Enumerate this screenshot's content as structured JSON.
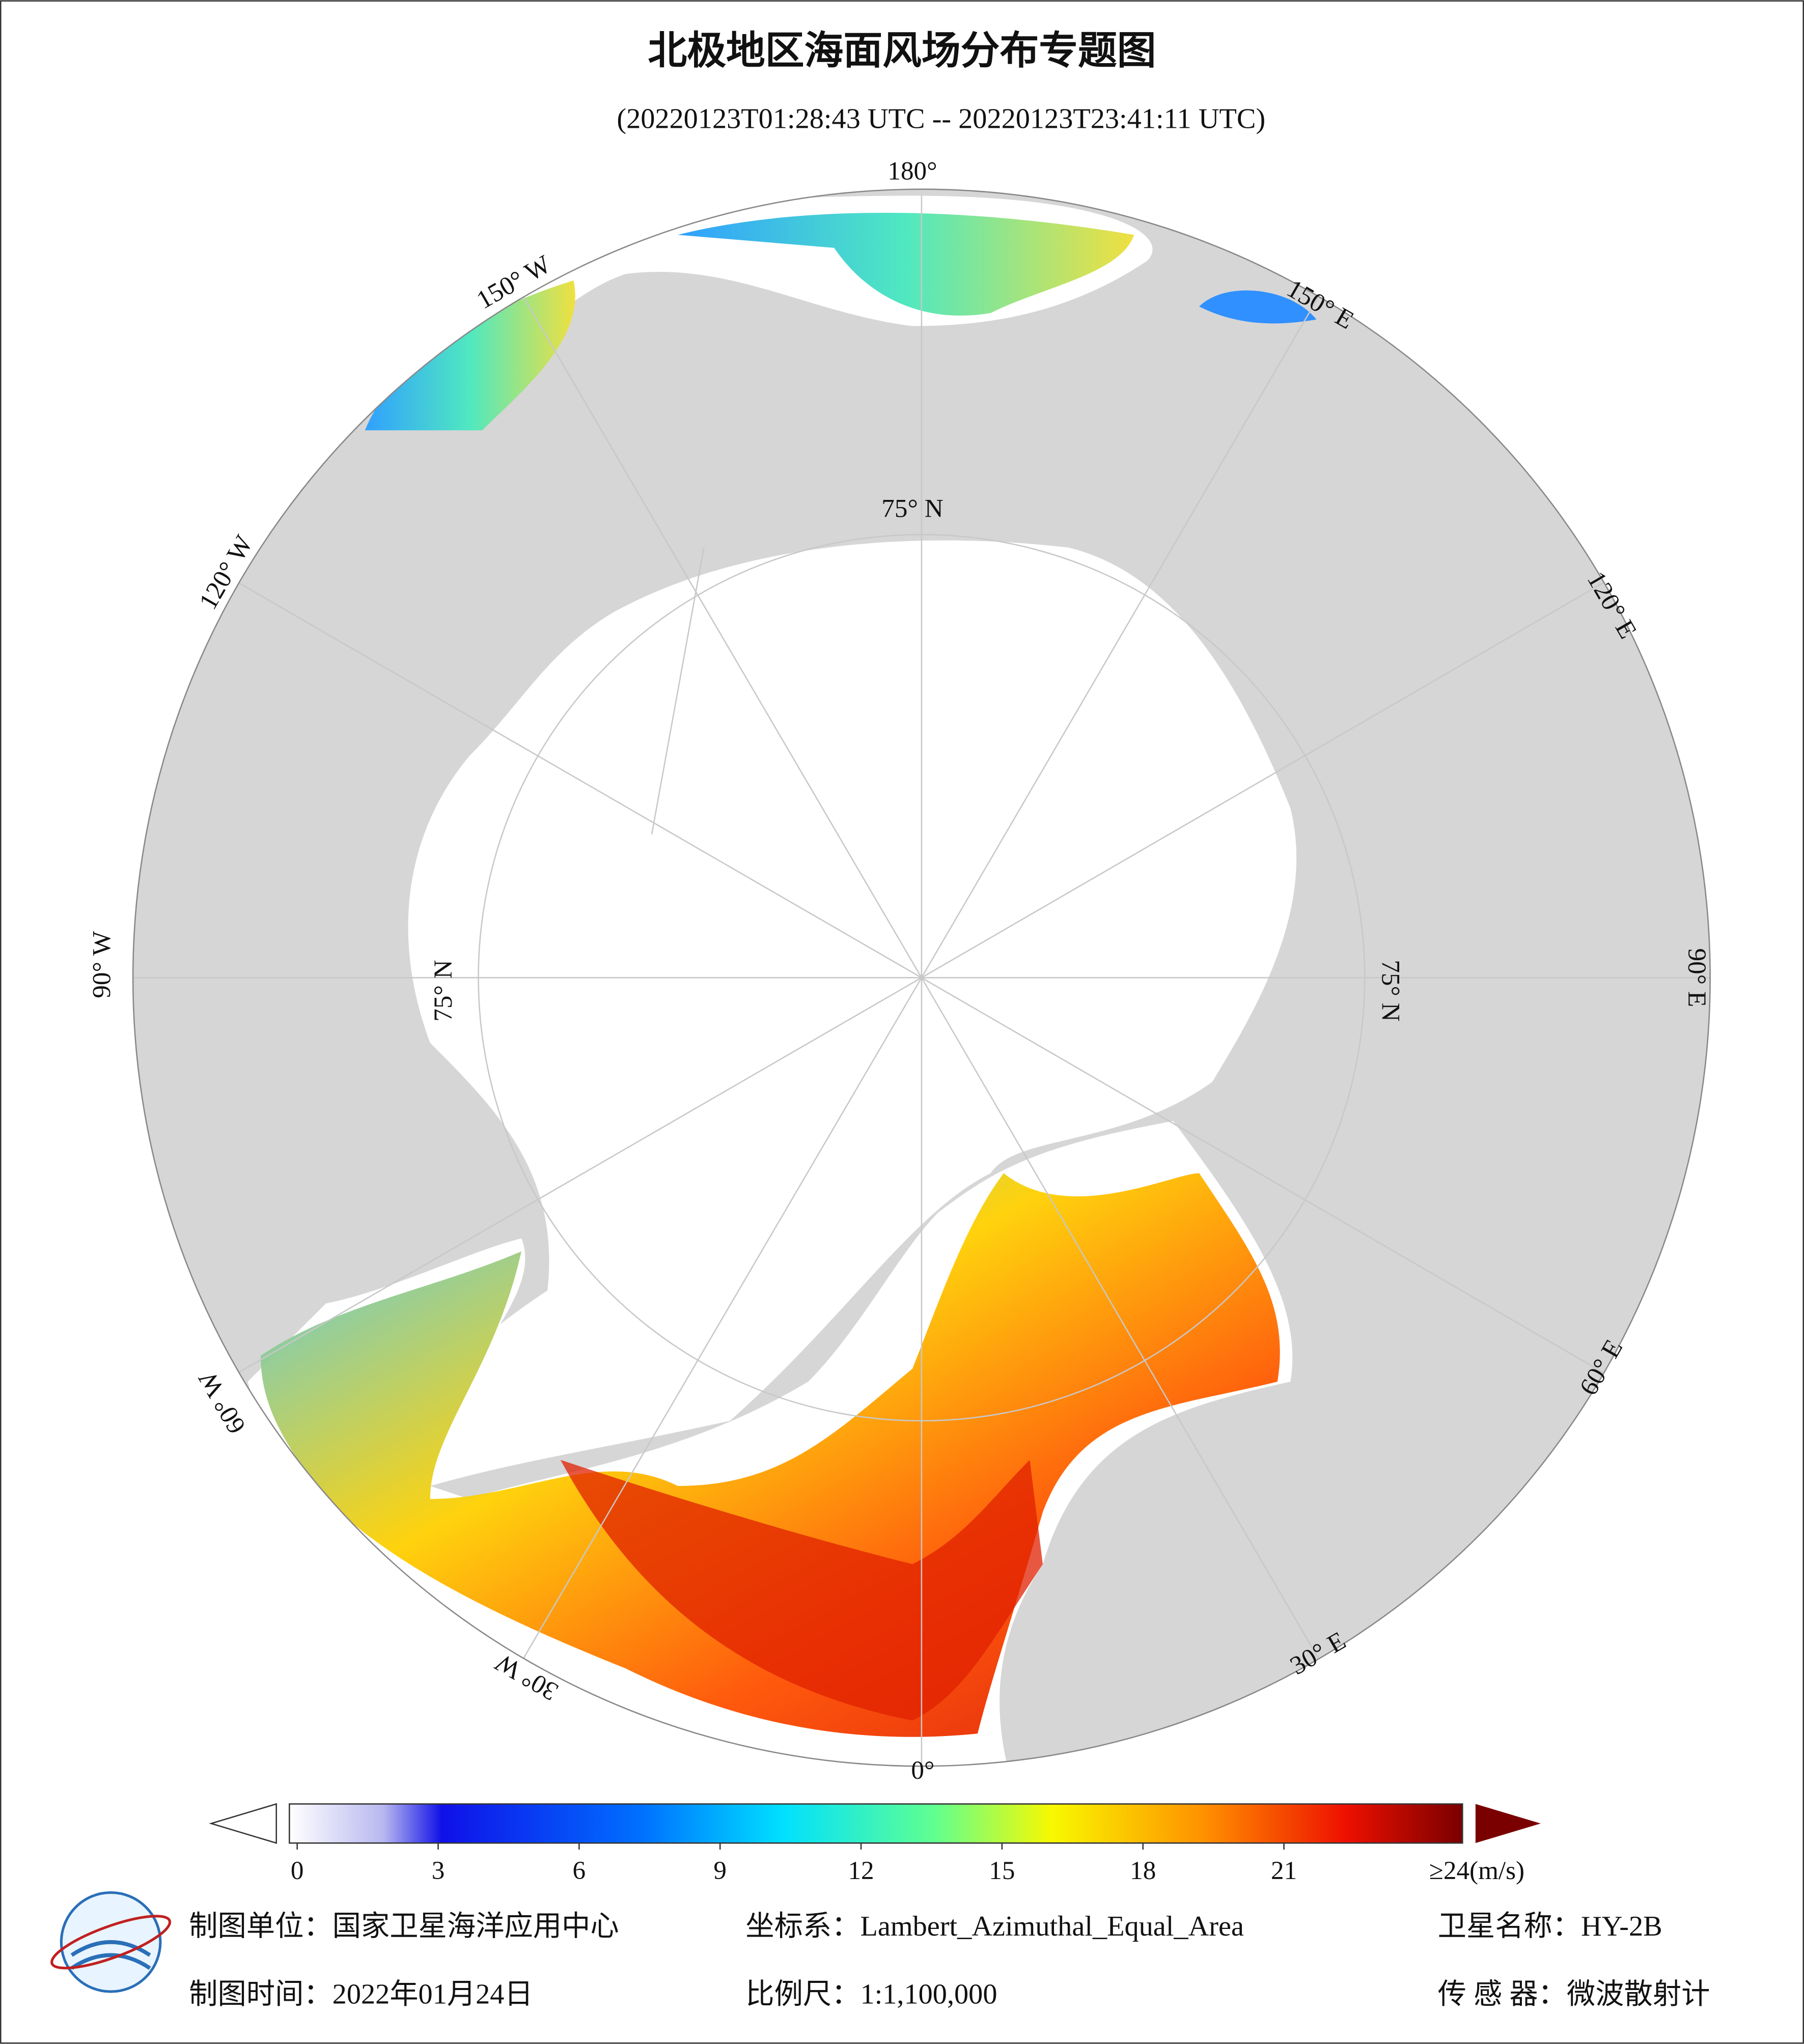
{
  "header": {
    "title": "北极地区海面风场分布专题图",
    "subtitle": "(20220123T01:28:43 UTC -- 20220123T23:41:11 UTC)"
  },
  "map": {
    "graticule_labels": [
      "180°",
      "150° W",
      "120° W",
      "90° W",
      "60° W",
      "30° W",
      "0°",
      "30° E",
      "60° E",
      "90° E",
      "120° E",
      "150° E",
      "75° N",
      "75° N",
      "75° N"
    ],
    "colorbar": {
      "ticks": [
        0,
        3,
        6,
        9,
        12,
        15,
        18,
        21
      ],
      "end_label": "≥24(m/s)"
    }
  },
  "footer": {
    "producer": "制图单位：国家卫星海洋应用中心",
    "coordinate_system": "坐标系：Lambert_Azimuthal_Equal_Area",
    "satellite": "卫星名称：HY-2B",
    "date": "制图时间：2022年01月24日",
    "scale": "比例尺：1:1,100,000",
    "sensor": "传 感 器：微波散射计"
  }
}
